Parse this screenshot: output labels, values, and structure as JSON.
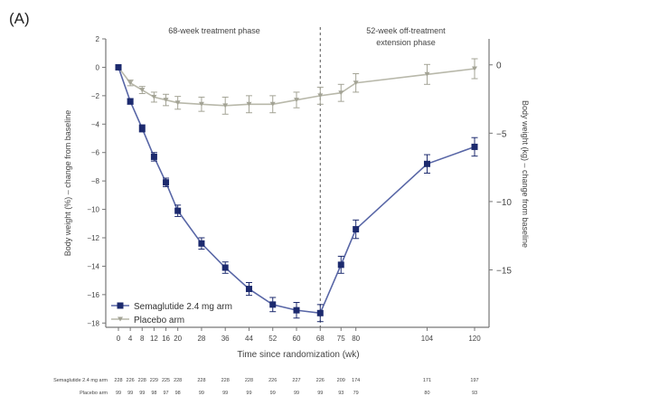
{
  "panel_label": "(A)",
  "chart_data": {
    "type": "line",
    "xlabel": "Time since randomization (wk)",
    "ylabel": "Body weight (%) – change from baseline",
    "ylabel_right": "Body weight (kg) – change from baseline",
    "x": [
      0,
      4,
      8,
      12,
      16,
      20,
      28,
      36,
      44,
      52,
      60,
      68,
      75,
      80,
      104,
      120
    ],
    "xlim": [
      -2,
      124
    ],
    "ylim": [
      -18.3,
      2
    ],
    "yticks": [
      2,
      0,
      -2,
      -4,
      -6,
      -8,
      -10,
      -12,
      -14,
      -16,
      -18
    ],
    "ylim_right": [
      -19.2,
      1.9
    ],
    "yticks_right": [
      0,
      -5,
      -10,
      -15
    ],
    "grid": false,
    "legend_position": "bottom-left",
    "phase_divider_x": 68,
    "phase_labels": [
      "68-week treatment phase",
      "52-week off-treatment extension phase"
    ],
    "series": [
      {
        "name": "Semaglutide 2.4 mg arm",
        "marker": "square",
        "color": "#1c2a6e",
        "line_color": "#5866a6",
        "values": [
          0,
          -2.4,
          -4.3,
          -6.3,
          -8.1,
          -10.1,
          -12.4,
          -14.1,
          -15.6,
          -16.7,
          -17.1,
          -17.3,
          -13.9,
          -11.4,
          -6.8,
          -5.6
        ],
        "error": [
          0,
          0.2,
          0.25,
          0.3,
          0.3,
          0.4,
          0.4,
          0.4,
          0.45,
          0.5,
          0.55,
          0.6,
          0.6,
          0.65,
          0.65,
          0.65
        ],
        "n_at_risk": [
          "228",
          "226",
          "228",
          "229",
          "225",
          "228",
          "228",
          "228",
          "228",
          "226",
          "227",
          "226",
          "209",
          "174",
          "171",
          "197"
        ]
      },
      {
        "name": "Placebo arm",
        "marker": "triangle-down",
        "color": "#a3a395",
        "line_color": "#b8b8aa",
        "values": [
          0,
          -1.1,
          -1.6,
          -2.1,
          -2.3,
          -2.5,
          -2.6,
          -2.7,
          -2.6,
          -2.6,
          -2.3,
          -2.0,
          -1.8,
          -1.1,
          -0.5,
          -0.1
        ],
        "error": [
          0,
          0.2,
          0.25,
          0.35,
          0.4,
          0.45,
          0.5,
          0.6,
          0.6,
          0.6,
          0.55,
          0.6,
          0.6,
          0.65,
          0.7,
          0.7
        ],
        "n_at_risk": [
          "99",
          "99",
          "99",
          "98",
          "97",
          "98",
          "99",
          "99",
          "99",
          "99",
          "99",
          "99",
          "93",
          "79",
          "80",
          "93"
        ]
      }
    ],
    "table_row_labels": [
      "Semaglutide 2.4 mg arm",
      "Placebo arm"
    ]
  }
}
